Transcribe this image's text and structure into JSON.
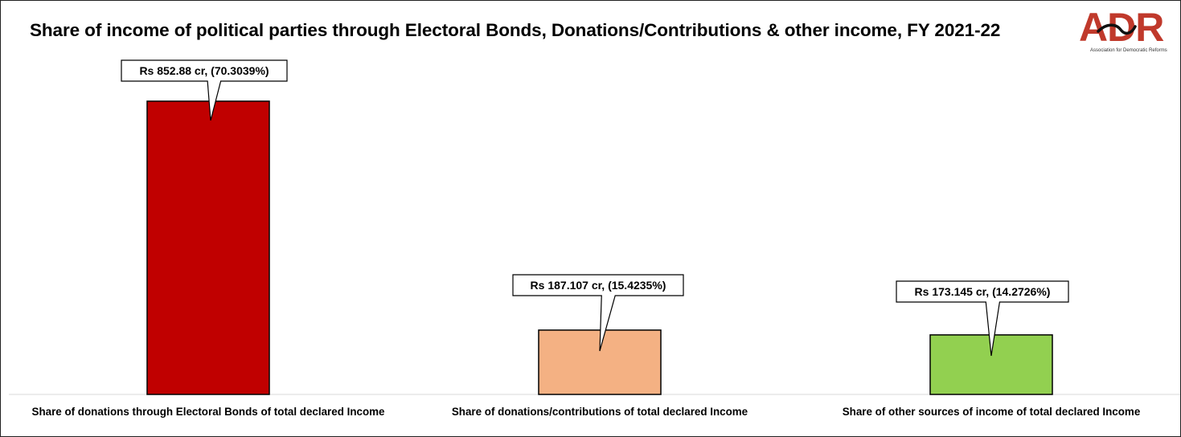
{
  "chart_data": {
    "type": "bar",
    "title": "Share of income of political parties through Electoral Bonds, Donations/Contributions & other income, FY 2021-22",
    "categories": [
      "Share of donations through Electoral Bonds of total declared Income",
      "Share of donations/contributions of total declared Income",
      "Share of other sources of income of total declared Income"
    ],
    "values": [
      852.88,
      187.107,
      173.145
    ],
    "data_labels": [
      "Rs 852.88 cr, (70.3039%)",
      "Rs 187.107 cr, (15.4235%)",
      "Rs 173.145 cr, (14.2726%)"
    ],
    "colors": [
      "#c00000",
      "#f4b183",
      "#92d050"
    ],
    "unit": "Rs cr",
    "ylim": [
      0,
      1000
    ],
    "grid": false,
    "legend": "none"
  },
  "logo": {
    "letters": "ADR",
    "tagline": "Association for Democratic Reforms",
    "color": "#c0392b"
  }
}
